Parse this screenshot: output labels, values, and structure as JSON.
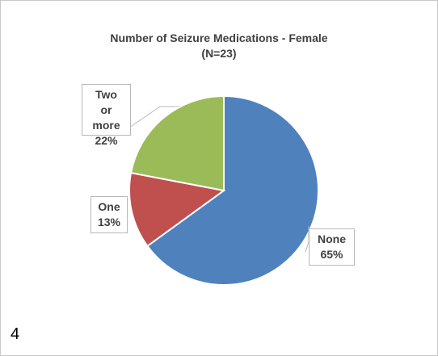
{
  "chart_data": {
    "type": "pie",
    "title": "Number of Seizure Medications - Female",
    "subtitle": "(N=23)",
    "slices": [
      {
        "label": "None",
        "value": 65,
        "pct_label": "65%",
        "color": "#4f81bd"
      },
      {
        "label": "One",
        "value": 13,
        "pct_label": "13%",
        "color": "#c0504d"
      },
      {
        "label": "Two or more",
        "value": 22,
        "pct_label": "22%",
        "color": "#9bbb59"
      }
    ],
    "legend": "none",
    "data_labels": "callouts"
  },
  "figure_number": "4"
}
